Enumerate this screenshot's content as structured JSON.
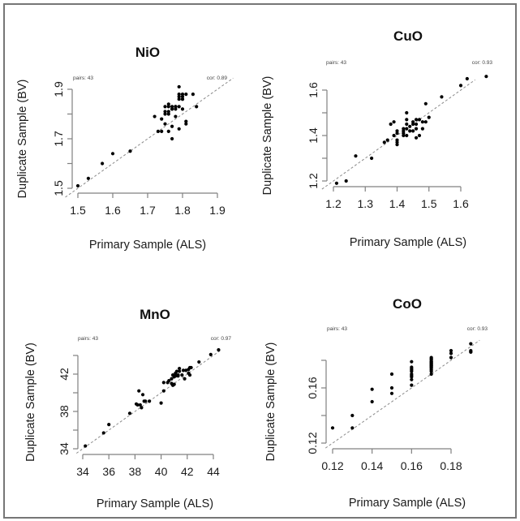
{
  "chart_data": [
    {
      "type": "scatter",
      "title": "NiO",
      "xlabel": "Primary Sample (ALS)",
      "ylabel": "Duplicate Sample (BV)",
      "annotation_left": "pairs: 43",
      "annotation_right": "cor: 0.89",
      "xlim": [
        1.5,
        1.9
      ],
      "ylim": [
        1.5,
        1.9
      ],
      "xticks": [
        "1.5",
        "1.6",
        "1.7",
        "1.8",
        "1.9"
      ],
      "xtick_values": [
        1.5,
        1.6,
        1.7,
        1.8,
        1.9
      ],
      "yticks": [
        "1.5",
        "1.7",
        "1.9"
      ],
      "ytick_values": [
        1.5,
        1.6,
        1.7,
        1.8,
        1.9
      ],
      "reference_line": "y = x (dashed)",
      "grid": false,
      "points": [
        [
          1.5,
          1.51
        ],
        [
          1.53,
          1.54
        ],
        [
          1.57,
          1.6
        ],
        [
          1.6,
          1.64
        ],
        [
          1.65,
          1.65
        ],
        [
          1.72,
          1.79
        ],
        [
          1.73,
          1.73
        ],
        [
          1.74,
          1.73
        ],
        [
          1.74,
          1.78
        ],
        [
          1.75,
          1.76
        ],
        [
          1.75,
          1.8
        ],
        [
          1.75,
          1.81
        ],
        [
          1.75,
          1.83
        ],
        [
          1.76,
          1.8
        ],
        [
          1.76,
          1.81
        ],
        [
          1.76,
          1.83
        ],
        [
          1.76,
          1.84
        ],
        [
          1.76,
          1.73
        ],
        [
          1.77,
          1.7
        ],
        [
          1.77,
          1.75
        ],
        [
          1.77,
          1.82
        ],
        [
          1.77,
          1.83
        ],
        [
          1.78,
          1.79
        ],
        [
          1.78,
          1.82
        ],
        [
          1.78,
          1.83
        ],
        [
          1.79,
          1.74
        ],
        [
          1.79,
          1.83
        ],
        [
          1.79,
          1.86
        ],
        [
          1.79,
          1.87
        ],
        [
          1.79,
          1.88
        ],
        [
          1.79,
          1.91
        ],
        [
          1.8,
          1.82
        ],
        [
          1.8,
          1.86
        ],
        [
          1.8,
          1.87
        ],
        [
          1.8,
          1.88
        ],
        [
          1.81,
          1.76
        ],
        [
          1.81,
          1.77
        ],
        [
          1.81,
          1.88
        ],
        [
          1.83,
          1.88
        ],
        [
          1.84,
          1.83
        ],
        [
          1.78,
          1.83
        ],
        [
          1.77,
          1.82
        ],
        [
          1.8,
          1.86
        ]
      ]
    },
    {
      "type": "scatter",
      "title": "CuO",
      "xlabel": "Primary Sample (ALS)",
      "ylabel": "Duplicate Sample (BV)",
      "annotation_left": "pairs: 43",
      "annotation_right": "cor: 0.93",
      "xlim": [
        1.2,
        1.6
      ],
      "ylim": [
        1.2,
        1.6
      ],
      "xticks": [
        "1.2",
        "1.3",
        "1.4",
        "1.5",
        "1.6"
      ],
      "xtick_values": [
        1.2,
        1.3,
        1.4,
        1.5,
        1.6
      ],
      "yticks": [
        "1.2",
        "1.4",
        "1.6"
      ],
      "ytick_values": [
        1.2,
        1.3,
        1.4,
        1.5,
        1.6
      ],
      "reference_line": "y = x (dashed)",
      "grid": false,
      "points": [
        [
          1.21,
          1.19
        ],
        [
          1.24,
          1.2
        ],
        [
          1.27,
          1.31
        ],
        [
          1.32,
          1.3
        ],
        [
          1.36,
          1.37
        ],
        [
          1.37,
          1.38
        ],
        [
          1.38,
          1.45
        ],
        [
          1.39,
          1.4
        ],
        [
          1.39,
          1.46
        ],
        [
          1.4,
          1.36
        ],
        [
          1.4,
          1.37
        ],
        [
          1.4,
          1.38
        ],
        [
          1.4,
          1.41
        ],
        [
          1.4,
          1.42
        ],
        [
          1.42,
          1.4
        ],
        [
          1.42,
          1.41
        ],
        [
          1.42,
          1.43
        ],
        [
          1.43,
          1.4
        ],
        [
          1.43,
          1.43
        ],
        [
          1.43,
          1.47
        ],
        [
          1.43,
          1.5
        ],
        [
          1.44,
          1.42
        ],
        [
          1.45,
          1.42
        ],
        [
          1.45,
          1.45
        ],
        [
          1.46,
          1.39
        ],
        [
          1.46,
          1.43
        ],
        [
          1.46,
          1.45
        ],
        [
          1.46,
          1.47
        ],
        [
          1.47,
          1.4
        ],
        [
          1.47,
          1.47
        ],
        [
          1.48,
          1.43
        ],
        [
          1.48,
          1.46
        ],
        [
          1.49,
          1.46
        ],
        [
          1.49,
          1.54
        ],
        [
          1.5,
          1.48
        ],
        [
          1.54,
          1.57
        ],
        [
          1.6,
          1.62
        ],
        [
          1.62,
          1.65
        ],
        [
          1.68,
          1.66
        ],
        [
          1.42,
          1.42
        ],
        [
          1.43,
          1.45
        ],
        [
          1.44,
          1.44
        ],
        [
          1.45,
          1.46
        ]
      ]
    },
    {
      "type": "scatter",
      "title": "MnO",
      "xlabel": "Primary Sample (ALS)",
      "ylabel": "Duplicate Sample (BV)",
      "annotation_left": "pairs: 43",
      "annotation_right": "cor: 0.97",
      "xlim": [
        34,
        44
      ],
      "ylim": [
        34,
        44
      ],
      "xticks": [
        "34",
        "36",
        "38",
        "40",
        "42",
        "44"
      ],
      "xtick_values": [
        34,
        36,
        38,
        40,
        42,
        44
      ],
      "yticks": [
        "34",
        "38",
        "42"
      ],
      "ytick_values": [
        34,
        36,
        38,
        40,
        42,
        44
      ],
      "reference_line": "y = x (dashed)",
      "grid": false,
      "points": [
        [
          34.2,
          34.3
        ],
        [
          35.6,
          35.7
        ],
        [
          36.0,
          36.6
        ],
        [
          37.6,
          37.8
        ],
        [
          38.1,
          38.8
        ],
        [
          38.2,
          38.7
        ],
        [
          38.3,
          40.2
        ],
        [
          38.4,
          38.7
        ],
        [
          38.5,
          38.4
        ],
        [
          38.6,
          39.8
        ],
        [
          38.7,
          39.1
        ],
        [
          38.8,
          39.1
        ],
        [
          39.1,
          39.1
        ],
        [
          40.0,
          38.9
        ],
        [
          40.2,
          40.2
        ],
        [
          40.2,
          41.1
        ],
        [
          40.5,
          41.1
        ],
        [
          40.6,
          41.3
        ],
        [
          40.8,
          41.0
        ],
        [
          40.8,
          41.5
        ],
        [
          40.9,
          40.8
        ],
        [
          40.9,
          41.9
        ],
        [
          41.0,
          40.9
        ],
        [
          41.0,
          41.7
        ],
        [
          41.1,
          41.8
        ],
        [
          41.1,
          42.1
        ],
        [
          41.2,
          42.3
        ],
        [
          41.3,
          41.8
        ],
        [
          41.3,
          41.9
        ],
        [
          41.4,
          42.3
        ],
        [
          41.4,
          42.6
        ],
        [
          41.6,
          41.9
        ],
        [
          41.7,
          42.4
        ],
        [
          41.8,
          41.5
        ],
        [
          41.9,
          42.4
        ],
        [
          42.1,
          42.1
        ],
        [
          42.1,
          42.5
        ],
        [
          42.2,
          42.7
        ],
        [
          42.2,
          41.9
        ],
        [
          42.3,
          42.7
        ],
        [
          42.9,
          43.3
        ],
        [
          43.8,
          44.1
        ],
        [
          44.4,
          44.6
        ]
      ]
    },
    {
      "type": "scatter",
      "title": "CoO",
      "xlabel": "Primary Sample (ALS)",
      "ylabel": "Duplicate Sample (BV)",
      "annotation_left": "pairs: 43",
      "annotation_right": "cor: 0.93",
      "xlim": [
        0.12,
        0.19
      ],
      "ylim": [
        0.12,
        0.19
      ],
      "xticks": [
        "0.12",
        "0.14",
        "0.16",
        "0.18"
      ],
      "xtick_values": [
        0.12,
        0.14,
        0.16,
        0.18
      ],
      "yticks": [
        "0.12",
        "0.16"
      ],
      "ytick_values": [
        0.12,
        0.14,
        0.16,
        0.18
      ],
      "reference_line": "y = x (dashed)",
      "grid": false,
      "points": [
        [
          0.12,
          0.131
        ],
        [
          0.13,
          0.131
        ],
        [
          0.13,
          0.14
        ],
        [
          0.14,
          0.15
        ],
        [
          0.14,
          0.159
        ],
        [
          0.15,
          0.156
        ],
        [
          0.15,
          0.16
        ],
        [
          0.15,
          0.17
        ],
        [
          0.16,
          0.162
        ],
        [
          0.16,
          0.166
        ],
        [
          0.16,
          0.169
        ],
        [
          0.16,
          0.172
        ],
        [
          0.16,
          0.174
        ],
        [
          0.16,
          0.175
        ],
        [
          0.16,
          0.179
        ],
        [
          0.17,
          0.17
        ],
        [
          0.17,
          0.172
        ],
        [
          0.17,
          0.174
        ],
        [
          0.17,
          0.175
        ],
        [
          0.17,
          0.176
        ],
        [
          0.17,
          0.177
        ],
        [
          0.17,
          0.178
        ],
        [
          0.17,
          0.179
        ],
        [
          0.17,
          0.18
        ],
        [
          0.17,
          0.181
        ],
        [
          0.17,
          0.182
        ],
        [
          0.18,
          0.182
        ],
        [
          0.18,
          0.185
        ],
        [
          0.18,
          0.187
        ],
        [
          0.19,
          0.186
        ],
        [
          0.19,
          0.187
        ],
        [
          0.19,
          0.192
        ],
        [
          0.17,
          0.173
        ],
        [
          0.17,
          0.176
        ],
        [
          0.16,
          0.17
        ],
        [
          0.17,
          0.179
        ],
        [
          0.17,
          0.177
        ],
        [
          0.16,
          0.173
        ],
        [
          0.17,
          0.181
        ],
        [
          0.17,
          0.175
        ],
        [
          0.17,
          0.178
        ],
        [
          0.19,
          0.186
        ],
        [
          0.16,
          0.168
        ]
      ]
    }
  ]
}
